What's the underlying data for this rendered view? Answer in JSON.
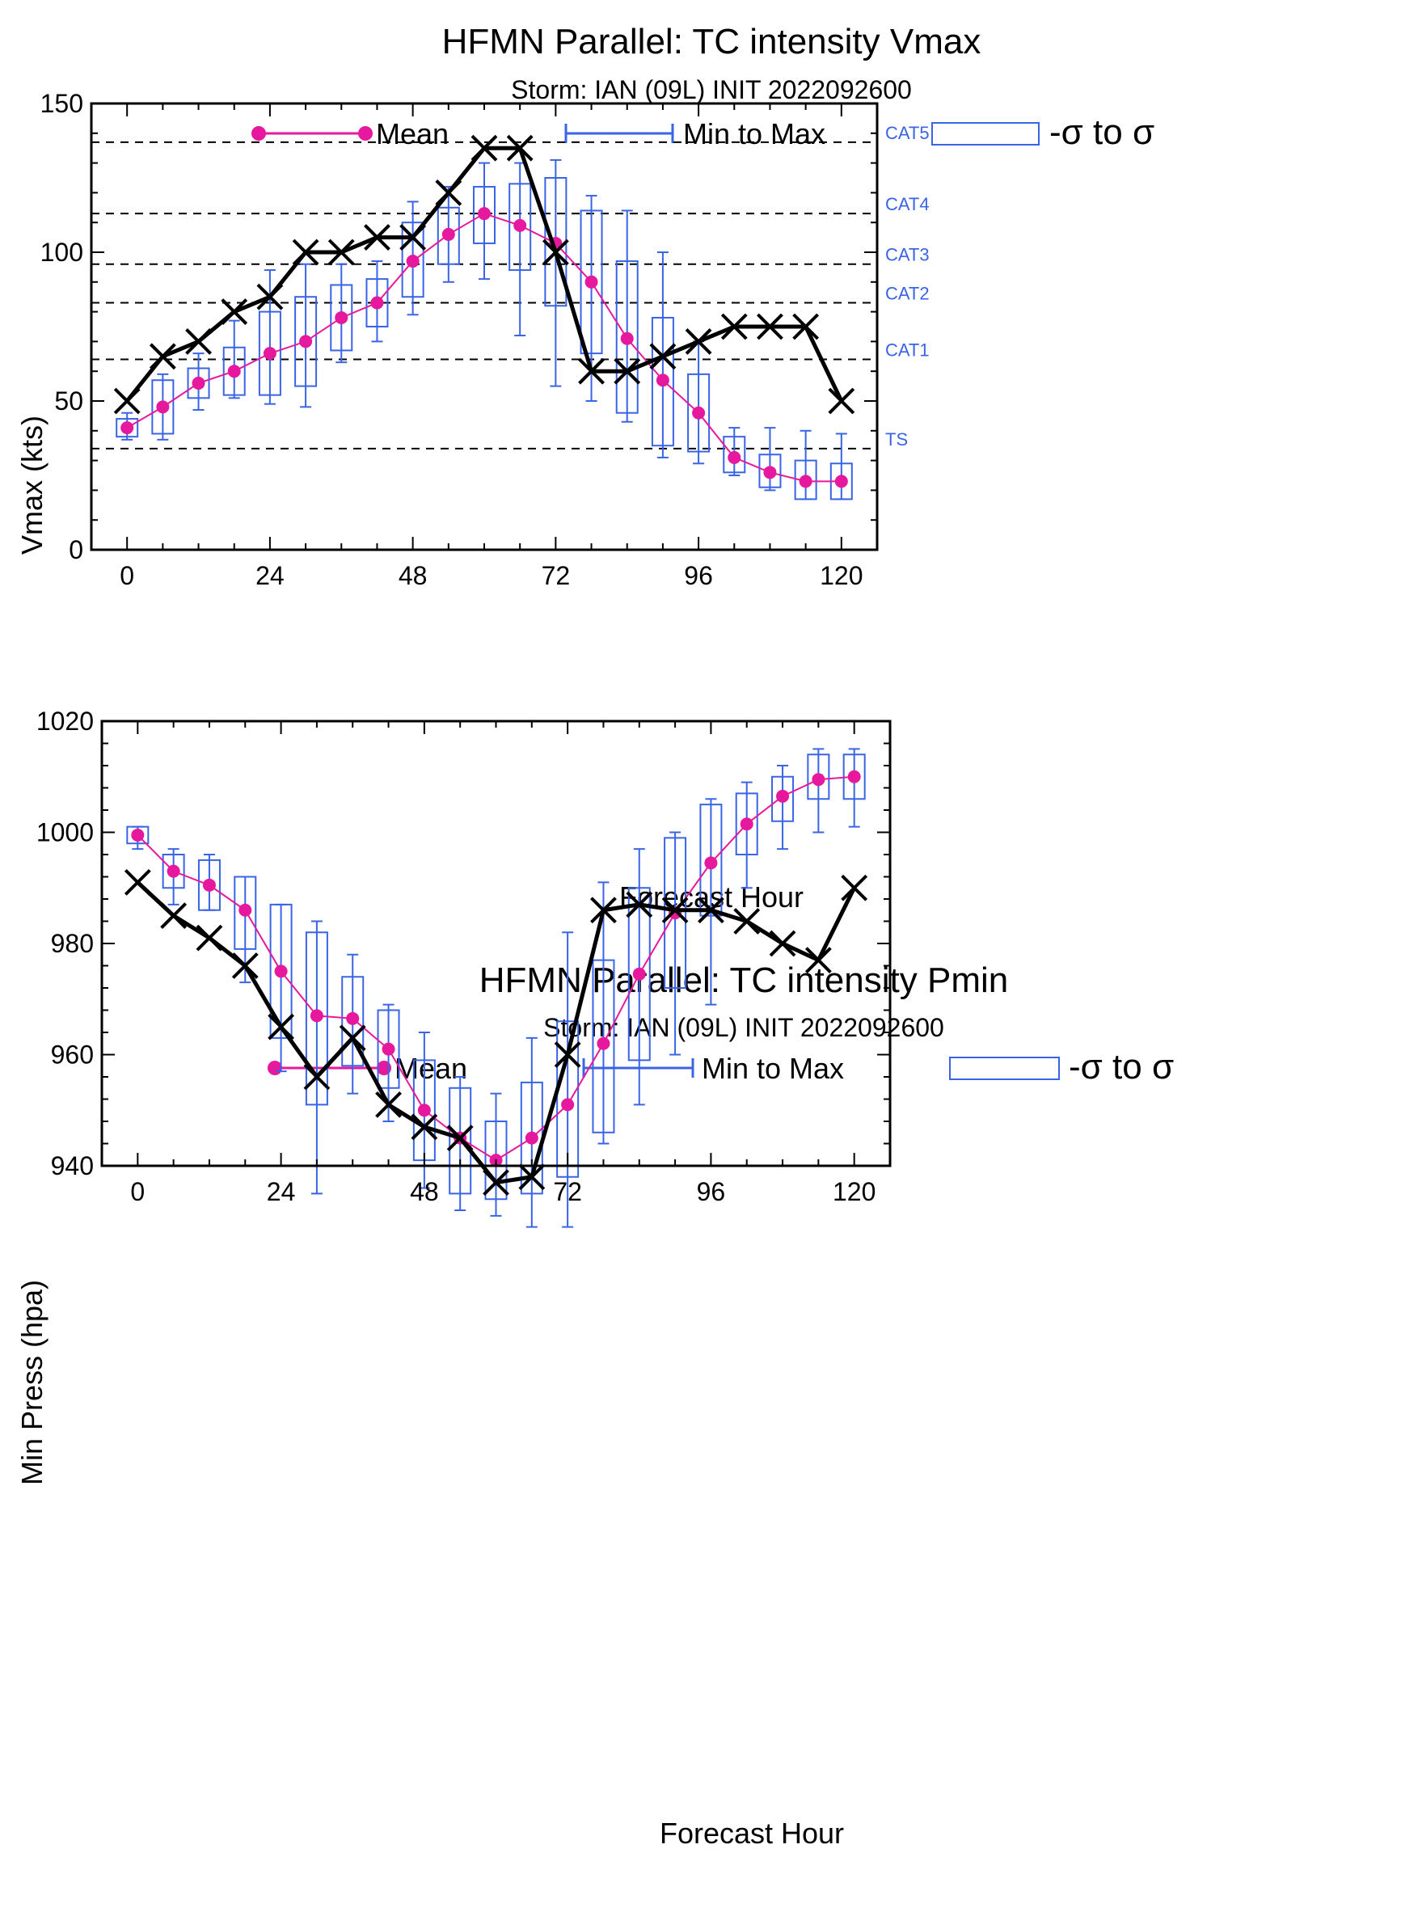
{
  "charts": [
    {
      "id": "vmax",
      "title": "HFMN Parallel: TC intensity Vmax",
      "subtitle": "Storm: IAN (09L) INIT 2022092600",
      "xlabel": "Forecast Hour",
      "ylabel": "Vmax (kts)"
    },
    {
      "id": "pmin",
      "title": "HFMN Parallel: TC intensity Pmin",
      "subtitle": "Storm: IAN (09L) INIT 2022092600",
      "xlabel": "Forecast Hour",
      "ylabel": "Min Press (hpa)"
    }
  ],
  "legend": {
    "mean": "Mean",
    "minmax": "Min to Max",
    "sigma": "-σ to σ"
  },
  "colors": {
    "mean": "#e6199e",
    "box": "#3a64e6",
    "observed": "#000000",
    "category_lines": "#000000",
    "category_labels": "#3a64e6"
  },
  "chart_data": [
    {
      "type": "line",
      "title": "HFMN Parallel: TC intensity Vmax",
      "subtitle": "Storm: IAN (09L) INIT 2022092600",
      "xlabel": "Forecast Hour",
      "ylabel": "Vmax (kts)",
      "xlim": [
        -6,
        126
      ],
      "ylim": [
        0,
        150
      ],
      "xticks": [
        0,
        24,
        48,
        72,
        96,
        120
      ],
      "yticks": [
        0,
        50,
        100,
        150
      ],
      "hours": [
        0,
        6,
        12,
        18,
        24,
        30,
        36,
        42,
        48,
        54,
        60,
        66,
        72,
        78,
        84,
        90,
        96,
        102,
        108,
        114,
        120
      ],
      "observed": [
        50,
        65,
        70,
        80,
        85,
        100,
        100,
        105,
        105,
        120,
        135,
        135,
        100,
        60,
        60,
        65,
        70,
        75,
        75,
        75,
        50
      ],
      "mean": [
        41,
        48,
        56,
        60,
        66,
        70,
        78,
        83,
        97,
        106,
        113,
        109,
        103,
        90,
        71,
        57,
        46,
        31,
        26,
        23,
        23
      ],
      "min": [
        37,
        37,
        47,
        51,
        49,
        48,
        63,
        70,
        79,
        90,
        91,
        72,
        55,
        50,
        43,
        31,
        29,
        25,
        20,
        17,
        17
      ],
      "max": [
        46,
        59,
        66,
        77,
        94,
        96,
        96,
        97,
        117,
        122,
        130,
        130,
        131,
        119,
        114,
        100,
        70,
        41,
        41,
        40,
        39
      ],
      "sigma_low": [
        38,
        39,
        51,
        52,
        52,
        55,
        67,
        75,
        85,
        96,
        103,
        94,
        82,
        66,
        46,
        35,
        33,
        26,
        21,
        17,
        17
      ],
      "sigma_high": [
        44,
        57,
        61,
        68,
        80,
        85,
        89,
        91,
        110,
        115,
        122,
        123,
        125,
        114,
        97,
        78,
        59,
        38,
        32,
        30,
        29
      ],
      "category_lines": [
        {
          "label": "TS",
          "value": 34
        },
        {
          "label": "CAT1",
          "value": 64
        },
        {
          "label": "CAT2",
          "value": 83
        },
        {
          "label": "CAT3",
          "value": 96
        },
        {
          "label": "CAT4",
          "value": 113
        },
        {
          "label": "CAT5",
          "value": 137
        }
      ],
      "legend": [
        "Mean",
        "Min to Max",
        "-σ to σ"
      ]
    },
    {
      "type": "line",
      "title": "HFMN Parallel: TC intensity Pmin",
      "subtitle": "Storm: IAN (09L) INIT 2022092600",
      "xlabel": "Forecast Hour",
      "ylabel": "Min Press (hpa)",
      "xlim": [
        -6,
        126
      ],
      "ylim": [
        940,
        1020
      ],
      "xticks": [
        0,
        24,
        48,
        72,
        96,
        120
      ],
      "yticks": [
        940,
        960,
        980,
        1000,
        1020
      ],
      "hours": [
        0,
        6,
        12,
        18,
        24,
        30,
        36,
        42,
        48,
        54,
        60,
        66,
        72,
        78,
        84,
        90,
        96,
        102,
        108,
        114,
        120
      ],
      "observed": [
        991,
        985,
        981,
        976,
        965,
        956,
        963,
        951,
        947,
        945,
        937,
        938,
        960,
        986,
        987,
        986,
        986,
        984,
        980,
        977,
        990
      ],
      "mean": [
        999.5,
        993,
        990.5,
        986,
        975,
        967,
        966.5,
        961,
        950,
        945,
        941,
        945,
        951,
        962,
        974.5,
        985.5,
        994.5,
        1001.5,
        1006.5,
        1009.5,
        1010
      ],
      "min": [
        997,
        987,
        986,
        973,
        957,
        935,
        953,
        948,
        936,
        932,
        931,
        929,
        929,
        944,
        951,
        960,
        969,
        990,
        997,
        1000,
        1001
      ],
      "max": [
        1001,
        997,
        996,
        992,
        987,
        984,
        978,
        969,
        964,
        956,
        953,
        963,
        982,
        991,
        997,
        1000,
        1006,
        1009,
        1012,
        1015,
        1015
      ],
      "sigma_low": [
        998,
        990,
        986,
        979,
        963,
        951,
        958,
        954,
        941,
        935,
        934,
        935,
        938,
        946,
        959,
        972,
        985,
        996,
        1002,
        1006,
        1006
      ],
      "sigma_high": [
        1001,
        996,
        995,
        992,
        987,
        982,
        974,
        968,
        959,
        954,
        948,
        955,
        966,
        977,
        990,
        999,
        1005,
        1007,
        1010,
        1014,
        1014
      ],
      "legend": [
        "Mean",
        "Min to Max",
        "-σ to σ"
      ]
    }
  ]
}
